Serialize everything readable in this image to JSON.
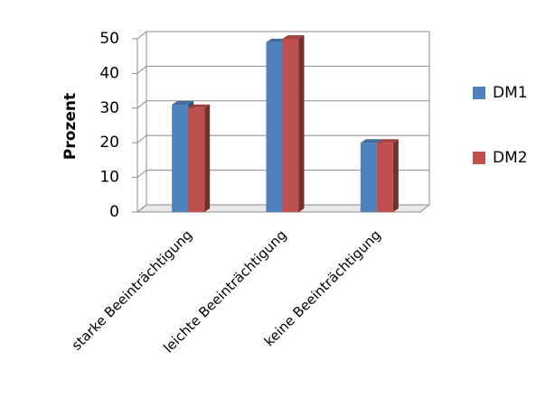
{
  "chart_data": {
    "type": "bar",
    "y_label": "Prozent",
    "categories": [
      "starke Beeinträchtigung",
      "leichte Beeinträchtigung",
      "keine Beeinträchtigung"
    ],
    "series": [
      {
        "name": "DM1",
        "color": "#4f81bd",
        "values": [
          31,
          49,
          20
        ]
      },
      {
        "name": "DM2",
        "color": "#c0504d",
        "values": [
          30,
          50,
          20
        ]
      }
    ],
    "ylim": [
      0,
      50
    ],
    "yticks": [
      0,
      10,
      20,
      30,
      40,
      50
    ],
    "grid": true,
    "legend": "right"
  }
}
